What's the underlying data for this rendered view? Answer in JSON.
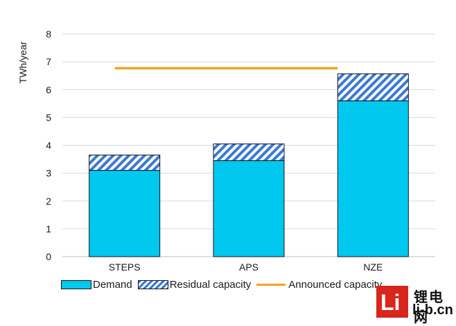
{
  "chart_data": {
    "type": "bar",
    "stacked": true,
    "categories": [
      "STEPS",
      "APS",
      "NZE"
    ],
    "series": [
      {
        "name": "Demand",
        "values": [
          3.1,
          3.45,
          5.6
        ],
        "color": "#00c8ef",
        "pattern": "solid"
      },
      {
        "name": "Residual capacity",
        "values": [
          0.55,
          0.6,
          0.97
        ],
        "color": "#3a78d6",
        "pattern": "diagonal-hatch"
      }
    ],
    "reference_lines": [
      {
        "name": "Announced capacity",
        "value": 6.77,
        "color": "#f2a51d"
      }
    ],
    "ylabel": "TWh/year",
    "xlabel": "",
    "title": "",
    "ylim": [
      0,
      8
    ],
    "yticks": [
      0,
      1,
      2,
      3,
      4,
      5,
      6,
      7,
      8
    ],
    "grid": true,
    "legend_position": "bottom"
  },
  "legend": {
    "demand": "Demand",
    "residual": "Residual capacity",
    "announced": "Announced capacity"
  },
  "watermark": {
    "logo_text": "Li",
    "site_cn": "锂电网",
    "site_en": "li-b.cn"
  }
}
